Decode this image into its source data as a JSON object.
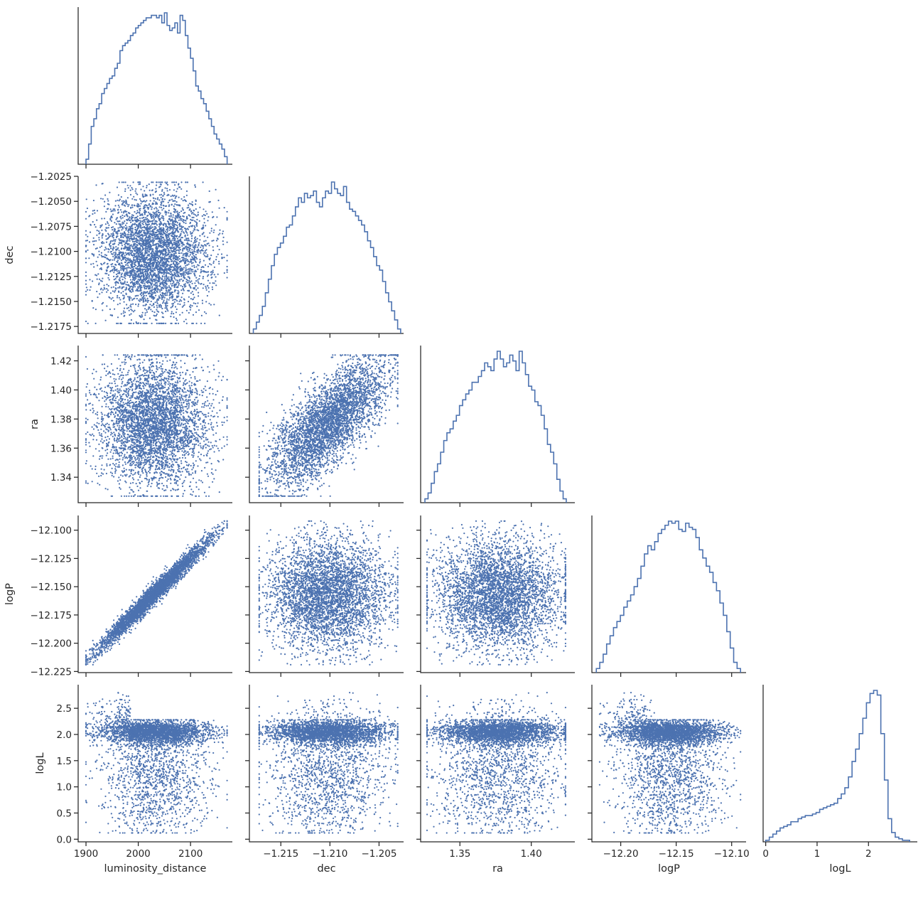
{
  "chart_data": {
    "type": "scatter",
    "layout": "corner pair plot (histograms on diagonal, scatter below)",
    "color": "#4c72b0",
    "variables": [
      {
        "name": "luminosity_distance",
        "label": "luminosity_distance",
        "range": [
          1885,
          2180
        ],
        "ticks": [
          1900,
          2000,
          2100
        ],
        "tick_labels": [
          "1900",
          "2000",
          "2100"
        ]
      },
      {
        "name": "dec",
        "label": "dec",
        "range": [
          -1.2182,
          -1.2025
        ],
        "ticks": [
          -1.2025,
          -1.205,
          -1.2075,
          -1.21,
          -1.2125,
          -1.215,
          -1.2175
        ],
        "tick_labels": [
          "−1.2025",
          "−1.2050",
          "−1.2075",
          "−1.2100",
          "−1.2125",
          "−1.2150",
          "−1.2175"
        ],
        "x_ticks": [
          -1.215,
          -1.21,
          -1.205
        ],
        "x_tick_labels": [
          "−1.215",
          "−1.210",
          "−1.205"
        ]
      },
      {
        "name": "ra",
        "label": "ra",
        "range": [
          1.3225,
          1.4305
        ],
        "ticks": [
          1.34,
          1.36,
          1.38,
          1.4,
          1.42
        ],
        "tick_labels": [
          "1.34",
          "1.36",
          "1.38",
          "1.40",
          "1.42"
        ],
        "x_ticks": [
          1.35,
          1.4
        ],
        "x_tick_labels": [
          "1.35",
          "1.40"
        ]
      },
      {
        "name": "logP",
        "label": "logP",
        "range": [
          -12.226,
          -12.087
        ],
        "ticks": [
          -12.1,
          -12.125,
          -12.15,
          -12.175,
          -12.2,
          -12.225
        ],
        "tick_labels": [
          "−12.100",
          "−12.125",
          "−12.150",
          "−12.175",
          "−12.200",
          "−12.225"
        ],
        "x_ticks": [
          -12.2,
          -12.15,
          -12.1
        ],
        "x_tick_labels": [
          "−12.20",
          "−12.15",
          "−12.10"
        ]
      },
      {
        "name": "logL",
        "label": "logL",
        "range": [
          -0.05,
          2.95
        ],
        "ticks": [
          0.0,
          0.5,
          1.0,
          1.5,
          2.0,
          2.5
        ],
        "tick_labels": [
          "0.0",
          "0.5",
          "1.0",
          "1.5",
          "2.0",
          "2.5"
        ],
        "x_ticks": [
          0,
          1,
          2
        ],
        "x_tick_labels": [
          "0",
          "1",
          "2"
        ]
      }
    ],
    "marginals": {
      "luminosity_distance": {
        "bin_range": [
          1900,
          2170
        ],
        "counts": [
          2,
          8,
          15,
          18,
          22,
          24,
          28,
          30,
          32,
          34,
          35,
          38,
          40,
          45,
          47,
          48,
          49,
          51,
          52,
          54,
          55,
          56,
          57,
          58,
          58,
          59,
          59,
          58,
          59,
          56,
          60,
          55,
          53,
          54,
          56,
          52,
          59,
          57,
          51,
          46,
          42,
          37,
          31,
          29,
          26,
          24,
          21,
          18,
          15,
          12,
          10,
          8,
          6,
          3
        ]
      },
      "dec": {
        "bin_range": [
          -1.2178,
          -1.2028
        ],
        "counts": [
          2,
          5,
          8,
          12,
          18,
          24,
          30,
          35,
          38,
          40,
          43,
          47,
          48,
          52,
          56,
          60,
          58,
          62,
          60,
          61,
          63,
          58,
          56,
          60,
          63,
          62,
          67,
          64,
          62,
          61,
          65,
          58,
          55,
          54,
          52,
          50,
          48,
          45,
          41,
          38,
          34,
          30,
          28,
          23,
          18,
          14,
          10,
          6,
          2
        ]
      },
      "ra": {
        "bin_range": [
          1.3255,
          1.4245
        ],
        "counts": [
          2,
          5,
          10,
          16,
          20,
          26,
          32,
          36,
          38,
          42,
          45,
          50,
          53,
          56,
          58,
          62,
          62,
          65,
          68,
          72,
          70,
          68,
          74,
          78,
          74,
          70,
          72,
          76,
          73,
          68,
          78,
          72,
          66,
          60,
          58,
          52,
          50,
          45,
          38,
          30,
          26,
          20,
          12,
          6,
          2
        ]
      },
      "logP": {
        "bin_range": [
          -12.222,
          -12.092
        ],
        "counts": [
          2,
          5,
          9,
          14,
          18,
          22,
          25,
          28,
          32,
          35,
          38,
          42,
          46,
          52,
          58,
          62,
          60,
          64,
          68,
          70,
          72,
          74,
          73,
          74,
          70,
          69,
          73,
          71,
          70,
          66,
          60,
          56,
          52,
          49,
          44,
          40,
          34,
          28,
          20,
          12,
          5,
          2
        ]
      },
      "logL": {
        "bin_range": [
          0.0,
          2.8
        ],
        "counts": [
          1,
          3,
          5,
          7,
          9,
          10,
          11,
          13,
          13,
          15,
          16,
          17,
          17,
          18,
          19,
          21,
          22,
          23,
          24,
          25,
          28,
          31,
          35,
          42,
          52,
          60,
          70,
          80,
          90,
          96,
          98,
          95,
          70,
          40,
          15,
          6,
          3,
          2,
          1,
          1
        ]
      }
    },
    "sample_size": 4000
  }
}
